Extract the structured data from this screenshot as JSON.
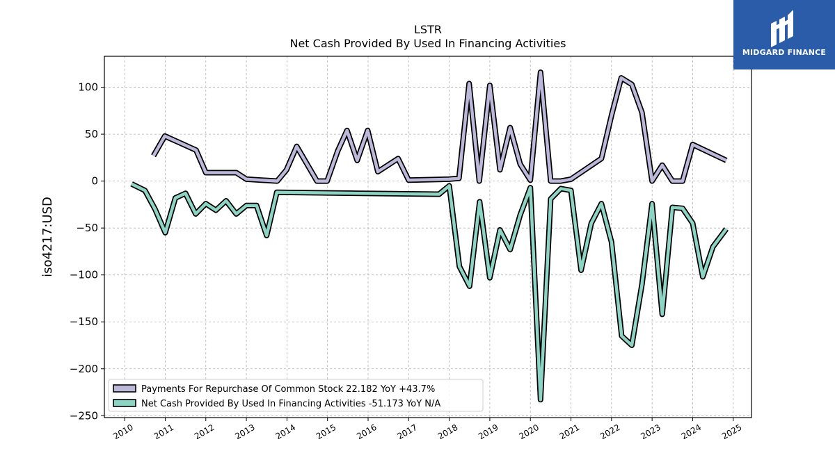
{
  "header": {
    "ticker": "LSTR",
    "subtitle": "Net Cash Provided By Used In Financing Activities"
  },
  "brand": {
    "name": "MIDGARD FINANCE",
    "color": "#2a5caa"
  },
  "chart_data": {
    "type": "line",
    "title": "LSTR",
    "subtitle": "Net Cash Provided By Used In Financing Activities",
    "xlabel": "",
    "ylabel": "iso4217:USD",
    "xlim": [
      2009.5,
      2025.45
    ],
    "ylim": [
      -252,
      133
    ],
    "yticks": [
      100,
      50,
      0,
      -50,
      -100,
      -150,
      -200,
      -250
    ],
    "yticklabels": [
      "100",
      "50",
      "0",
      "−50",
      "−100",
      "−150",
      "−200",
      "−250"
    ],
    "xticks": [
      "2010",
      "2011",
      "2012",
      "2013",
      "2014",
      "2015",
      "2016",
      "2017",
      "2018",
      "2019",
      "2020",
      "2021",
      "2022",
      "2023",
      "2024",
      "2025"
    ],
    "grid": true,
    "legend_position": "lower-left",
    "series": [
      {
        "name": "Payments For Repurchase Of Common Stock  22.182 YoY +43.7%",
        "color": "#bcb8da",
        "x": [
          2010.71,
          2010.99,
          2011.76,
          2012.0,
          2012.75,
          2013.0,
          2013.76,
          2013.99,
          2014.24,
          2014.74,
          2014.99,
          2015.25,
          2015.48,
          2015.73,
          2015.99,
          2016.24,
          2016.74,
          2017.0,
          2017.99,
          2018.24,
          2018.49,
          2018.74,
          2019.0,
          2019.25,
          2019.5,
          2019.75,
          2020.0,
          2020.25,
          2020.5,
          2020.75,
          2021.0,
          2021.75,
          2022.0,
          2022.24,
          2022.5,
          2022.75,
          2023.0,
          2023.25,
          2023.5,
          2023.75,
          2024.0,
          2024.83
        ],
        "values": [
          27,
          48,
          33,
          9,
          9,
          2,
          0,
          12,
          37,
          0,
          0,
          32,
          54,
          22,
          54,
          10,
          24,
          1,
          2,
          3,
          104,
          0,
          102,
          12,
          57,
          18,
          1,
          116,
          0,
          0,
          2,
          24,
          70,
          110,
          103,
          73,
          0,
          17,
          0,
          0,
          39,
          22
        ]
      },
      {
        "name": "Net Cash Provided By Used In Financing Activities  -51.173 YoY N/A",
        "color": "#8ed4c4",
        "x": [
          2010.17,
          2010.5,
          2010.75,
          2011.0,
          2011.25,
          2011.5,
          2011.75,
          2012.0,
          2012.25,
          2012.5,
          2012.75,
          2013.0,
          2013.25,
          2013.5,
          2013.75,
          2017.75,
          2018.0,
          2018.25,
          2018.5,
          2018.75,
          2019.0,
          2019.25,
          2019.5,
          2019.75,
          2020.0,
          2020.25,
          2020.5,
          2020.75,
          2021.0,
          2021.25,
          2021.5,
          2021.75,
          2022.0,
          2022.25,
          2022.5,
          2022.75,
          2023.0,
          2023.25,
          2023.5,
          2023.75,
          2024.0,
          2024.25,
          2024.5,
          2024.83
        ],
        "values": [
          -3,
          -10,
          -30,
          -55,
          -18,
          -13,
          -35,
          -24,
          -31,
          -21,
          -35,
          -26,
          -26,
          -58,
          -12,
          -14,
          -5,
          -91,
          -112,
          -22,
          -103,
          -52,
          -73,
          -36,
          -7,
          -233,
          -19,
          -8,
          -10,
          -95,
          -45,
          -24,
          -65,
          -165,
          -175,
          -110,
          -24,
          -142,
          -28,
          -29,
          -45,
          -102,
          -70,
          -51
        ]
      }
    ]
  }
}
